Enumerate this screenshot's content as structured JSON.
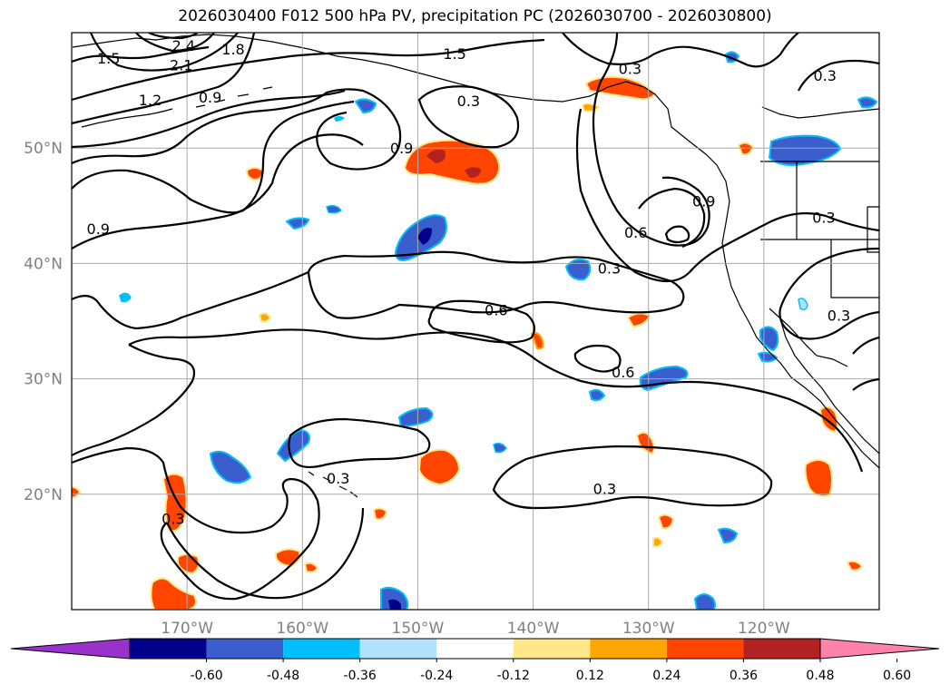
{
  "title": "2026030400 F012 500 hPa PV, precipitation PC (2026030700 - 2026030800)",
  "map": {
    "lon_range": [
      -180,
      -110
    ],
    "lat_range": [
      10,
      60
    ],
    "lon_ticks": [
      {
        "value": -170,
        "label": "170°W"
      },
      {
        "value": -160,
        "label": "160°W"
      },
      {
        "value": -150,
        "label": "150°W"
      },
      {
        "value": -140,
        "label": "140°W"
      },
      {
        "value": -130,
        "label": "130°W"
      },
      {
        "value": -120,
        "label": "120°W"
      }
    ],
    "lat_ticks": [
      {
        "value": 20,
        "label": "20°N"
      },
      {
        "value": 30,
        "label": "30°N"
      },
      {
        "value": 40,
        "label": "40°N"
      },
      {
        "value": 50,
        "label": "50°N"
      }
    ],
    "grid": true,
    "pv_contour_levels": [
      "0.3",
      "0.6",
      "0.9",
      "1.2",
      "1.5",
      "1.8",
      "2.1",
      "2.4"
    ],
    "contour_labels": [
      {
        "text": "2.4",
        "lon": -170.3,
        "lat": 58.9
      },
      {
        "text": "2.1",
        "lon": -170.5,
        "lat": 57.2
      },
      {
        "text": "1.8",
        "lon": -166.0,
        "lat": 58.6
      },
      {
        "text": "1.5",
        "lon": -176.8,
        "lat": 57.8
      },
      {
        "text": "1.5",
        "lon": -146.8,
        "lat": 58.2
      },
      {
        "text": "1.2",
        "lon": -173.2,
        "lat": 54.2
      },
      {
        "text": "0.9",
        "lon": -168.0,
        "lat": 54.4
      },
      {
        "text": "0.3",
        "lon": -145.6,
        "lat": 54.1
      },
      {
        "text": "0.9",
        "lon": -151.4,
        "lat": 50.0
      },
      {
        "text": "0.9",
        "lon": -177.7,
        "lat": 43.0
      },
      {
        "text": "0.3",
        "lon": -131.6,
        "lat": 56.9
      },
      {
        "text": "0.3",
        "lon": -114.7,
        "lat": 56.3
      },
      {
        "text": "0.9",
        "lon": -125.2,
        "lat": 45.4
      },
      {
        "text": "0.6",
        "lon": -131.1,
        "lat": 42.7
      },
      {
        "text": "0.3",
        "lon": -133.4,
        "lat": 39.6
      },
      {
        "text": "0.3",
        "lon": -114.8,
        "lat": 44.0
      },
      {
        "text": "0.3",
        "lon": -113.5,
        "lat": 35.5
      },
      {
        "text": "0.6",
        "lon": -143.2,
        "lat": 36.0
      },
      {
        "text": "0.6",
        "lon": -132.2,
        "lat": 30.6
      },
      {
        "text": "0.3",
        "lon": -133.8,
        "lat": 20.5
      },
      {
        "text": "0.3",
        "lon": -156.9,
        "lat": 21.4
      },
      {
        "text": "0.3",
        "lon": -171.2,
        "lat": 17.9
      }
    ]
  },
  "colorbar": {
    "boundaries": [
      "-0.60",
      "-0.48",
      "-0.36",
      "-0.24",
      "-0.12",
      "0.12",
      "0.24",
      "0.36",
      "0.48",
      "0.60"
    ],
    "colors": [
      "#9932CC",
      "#00008B",
      "#3A5FCD",
      "#00BFFF",
      "#B0E2FF",
      "#FFFFFF",
      "#FFE78C",
      "#FFA500",
      "#FF4500",
      "#B22222",
      "#FF82AB"
    ]
  }
}
